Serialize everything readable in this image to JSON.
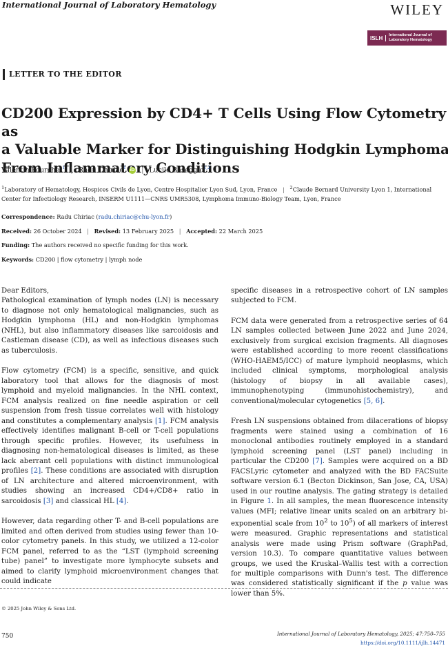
{
  "header": {
    "journal_name": "International Journal of Laboratory Hematology",
    "publisher": "WILEY",
    "society_logo_abbr": "ISLH",
    "society_logo_text_line1": "International Journal of",
    "society_logo_text_line2": "Laboratory Hematology"
  },
  "section_label": "LETTER TO THE EDITOR",
  "title_lines": [
    "CD200 Expression by CD4+ T Cells Using Flow Cytometry as",
    "a Valuable Marker for Distinguishing Hodgkin Lymphoma",
    "From Inflammatory Conditions"
  ],
  "authors": [
    {
      "name": "Valentin Pourchet",
      "sup": "1"
    },
    {
      "name": "Radu Chiriac",
      "sup": "1"
    },
    {
      "name": "Lucile Baseggio",
      "sup": "1,2"
    }
  ],
  "orcid_label": "iD",
  "affiliations": {
    "sup1": "1",
    "part1": "Laboratory of Hematology, Hospices Civils de Lyon, Centre Hospitalier Lyon Sud, Lyon, France",
    "sep": "|",
    "sup2": "2",
    "part2": "Claude Bernard University Lyon 1, International Center for Infectiology Research, INSERM U1111—CNRS UMR5308, Lymphoma Immuno-Biology Team, Lyon, France"
  },
  "correspondence": {
    "label": "Correspondence:",
    "name": "Radu Chiriac",
    "email": "radu.chiriac@chu-lyon.fr"
  },
  "dates": {
    "received_label": "Received:",
    "received": "26 October 2024",
    "revised_label": "Revised:",
    "revised": "13 February 2025",
    "accepted_label": "Accepted:",
    "accepted": "22 March 2025"
  },
  "funding": {
    "label": "Funding:",
    "text": "The authors received no specific funding for this work."
  },
  "keywords": {
    "label": "Keywords:",
    "text": "CD200 | flow cytometry | lymph node"
  },
  "left_col": {
    "salutation": "Dear Editors,",
    "p1": "Pathological examination of lymph nodes (LN) is necessary to diagnose not only hematological malignancies, such as Hodgkin lymphoma (HL) and non-Hodgkin lymphomas (NHL), but also inflammatory diseases like sarcoidosis and Castleman disease (CD), as well as infectious diseases such as tuberculosis.",
    "p2_a": "Flow cytometry (FCM) is a specific, sensitive, and quick laboratory tool that allows for the diagnosis of most lymphoid and myeloid malignancies. In the NHL context, FCM analysis realized on fine needle aspiration or cell suspension from fresh tissue correlates well with histology and constitutes a complementary analysis ",
    "p2_ref1": "[1]",
    "p2_b": ". FCM analysis effectively identifies malignant B-cell or T-cell populations through specific profiles. However, its usefulness in diagnosing non-hematological diseases is limited, as these lack aberrant cell populations with distinct immunological profiles ",
    "p2_ref2": "[2]",
    "p2_c": ". These conditions are associated with disruption of LN architecture and altered microenvironment, with studies showing an increased CD4+/CD8+ ratio in sarcoidosis ",
    "p2_ref3": "[3]",
    "p2_d": " and classical HL ",
    "p2_ref4": "[4]",
    "p2_e": ".",
    "p3": "However, data regarding other T- and B-cell populations are limited and often derived from studies using fewer than 10-color cytometry panels. In this study, we utilized a 12-color FCM panel, referred to as the “LST (lymphoid screening tube) panel” to investigate more lymphocyte subsets and aimed to clarify lymphoid microenvironment changes that could indicate"
  },
  "right_col": {
    "p1": "specific diseases in a retrospective cohort of LN samples subjected to FCM.",
    "p2_a": "FCM data were generated from a retrospective series of 64 LN samples collected between June 2022 and June 2024, exclusively from surgical excision fragments. All diagnoses were established according to more recent classifications (WHO-HAEM5/ICC) of mature lymphoid neoplasms, which included clinical symptoms, morphological analysis (histology of biopsy in all available cases), immunophenotyping (immunohistochemistry), and conventional/molecular cytogenetics ",
    "p2_ref": "[5, 6]",
    "p2_b": ".",
    "p3_a": "Fresh LN suspensions obtained from dilacerations of biopsy fragments were stained using a combination of 16 monoclonal antibodies routinely employed in a standard lymphoid screening panel (LST panel) including in particular the CD200 ",
    "p3_ref": "[7]",
    "p3_b": ". Samples were acquired on a BD FACSLyric cytometer and analyzed with the BD FACSuite software version 6.1 (Becton Dickinson, San Jose, CA, USA) used in our routine analysis. The gating strategy is detailed in Figure ",
    "p3_fig": "1",
    "p3_c": ". In all samples, the mean fluorescence intensity values (MFI; relative linear units scaled on an arbitrary bi-exponential scale from 10",
    "p3_exp1": "2",
    "p3_d": " to 10",
    "p3_exp2": "5",
    "p3_e": ") of all markers of interest were measured. Graphic representations and statistical analysis were made using Prism software (GraphPad, version 10.3). To compare quantitative values between groups, we used the Kruskal–Wallis test with a correction for multiple comparisons with Dunn's test. The difference was considered statistically significant if the ",
    "p3_p": "p",
    "p3_f": " value was lower than 5%."
  },
  "footer": {
    "copyright": "© 2025 John Wiley & Sons Ltd.",
    "page_number": "750",
    "citation": "International Journal of Laboratory Hematology, 2025; 47:750–755",
    "doi": "https://doi.org/10.1111/ijlh.14471"
  }
}
